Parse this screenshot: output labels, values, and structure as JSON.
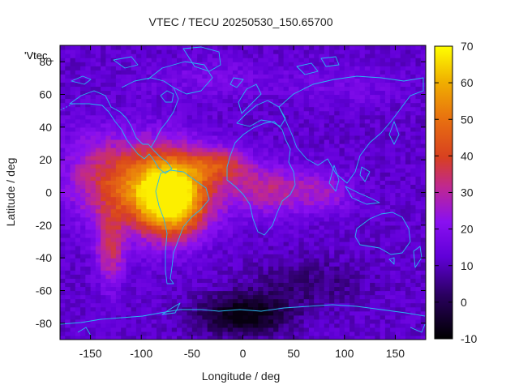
{
  "chart_data": {
    "type": "heatmap",
    "title": "VTEC / TECU 20250530_150.65700",
    "xlabel": "Longitude / deg",
    "ylabel": "Latitude / deg",
    "xlim": [
      -180,
      180
    ],
    "ylim": [
      -90,
      90
    ],
    "x_ticks": [
      -150,
      -100,
      -50,
      0,
      50,
      100,
      150
    ],
    "y_ticks": [
      -80,
      -60,
      -40,
      -20,
      0,
      20,
      40,
      60,
      80
    ],
    "colorbar": {
      "range": [
        -10,
        70
      ],
      "ticks": [
        70,
        60,
        50,
        40,
        30,
        20,
        10,
        0,
        -10
      ],
      "palette": "gnuplot-pm3d (black-purple-red-yellow)"
    },
    "key_label": "'Vtec_",
    "overlay": "coastlines (light blue)",
    "description_of_field": {
      "background_level": 12,
      "equatorial_anomaly_max": 68,
      "anomaly_center_lon": -70,
      "anomaly_center_lat": -5,
      "south_atlantic_minimum": -8
    }
  }
}
